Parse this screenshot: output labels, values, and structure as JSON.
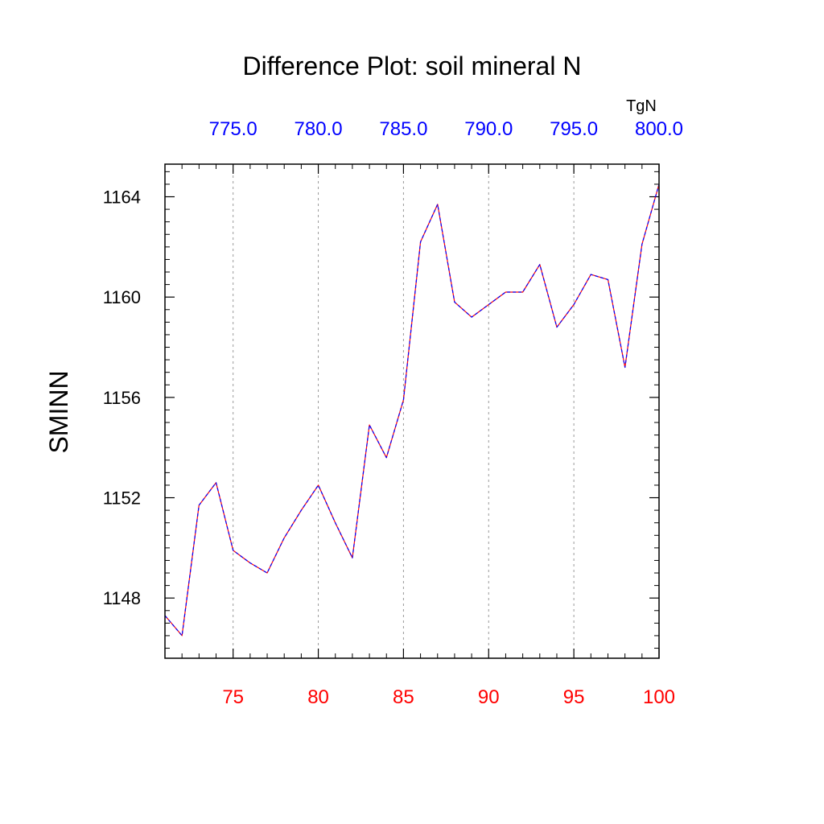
{
  "chart_data": {
    "type": "line",
    "title": "Difference Plot: soil mineral N",
    "ylabel": "SMINN",
    "top_axis_unit": "TgN",
    "xlim": [
      71,
      100
    ],
    "ylim": [
      1145.6,
      1165.3
    ],
    "grid": "vertical-dashed",
    "x_ticks_bottom": [
      75,
      80,
      85,
      90,
      95,
      100
    ],
    "x_tick_labels_bottom": [
      "75",
      "80",
      "85",
      "90",
      "95",
      "100"
    ],
    "x_tick_labels_top": [
      "775.0",
      "780.0",
      "785.0",
      "790.0",
      "795.0",
      "800.0"
    ],
    "y_ticks": [
      1148,
      1152,
      1156,
      1160,
      1164
    ],
    "y_tick_labels": [
      "1148",
      "1152",
      "1156",
      "1160",
      "1164"
    ],
    "colors": {
      "bottom_tick_labels": "#ff0000",
      "top_tick_labels": "#0000ff",
      "series_a": "#ff0000",
      "series_b": "#0000ff",
      "grid": "#999999"
    },
    "series": [
      {
        "x": [
          71,
          72,
          73,
          74,
          75,
          76,
          77,
          78,
          79,
          80,
          81,
          82,
          83,
          84,
          85,
          86,
          87,
          88,
          89,
          90,
          91,
          92,
          93,
          94,
          95,
          96,
          97,
          98,
          99,
          100
        ],
        "values": [
          1147.3,
          1146.5,
          1151.7,
          1152.6,
          1149.9,
          1149.4,
          1149.0,
          1150.4,
          1151.5,
          1152.5,
          1151.0,
          1149.6,
          1154.9,
          1153.6,
          1155.9,
          1162.2,
          1163.7,
          1159.8,
          1159.2,
          1159.7,
          1160.2,
          1160.2,
          1161.3,
          1158.8,
          1159.7,
          1160.9,
          1160.7,
          1157.2,
          1162.1,
          1164.5
        ]
      },
      {
        "x": [
          71,
          72,
          73,
          74,
          75,
          76,
          77,
          78,
          79,
          80,
          81,
          82,
          83,
          84,
          85,
          86,
          87,
          88,
          89,
          90,
          91,
          92,
          93,
          94,
          95,
          96,
          97,
          98,
          99,
          100
        ],
        "values": [
          1147.3,
          1146.5,
          1151.7,
          1152.6,
          1149.9,
          1149.4,
          1149.0,
          1150.4,
          1151.5,
          1152.5,
          1151.0,
          1149.6,
          1154.9,
          1153.6,
          1155.9,
          1162.2,
          1163.7,
          1159.8,
          1159.2,
          1159.7,
          1160.2,
          1160.2,
          1161.3,
          1158.8,
          1159.7,
          1160.9,
          1160.7,
          1157.2,
          1162.1,
          1164.5
        ]
      }
    ]
  }
}
